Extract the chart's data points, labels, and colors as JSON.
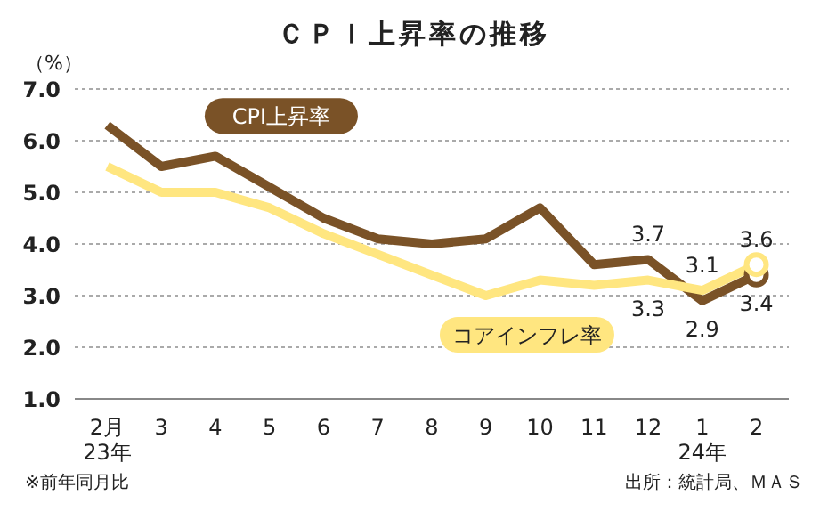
{
  "chart_data": {
    "type": "line",
    "title": "ＣＰＩ上昇率の推移",
    "ylabel": "（%）",
    "categories": [
      "2月\n23年",
      "3",
      "4",
      "5",
      "6",
      "7",
      "8",
      "9",
      "10",
      "11",
      "12",
      "1\n24年",
      "2"
    ],
    "series": [
      {
        "name": "CPI上昇率",
        "color": "#7a5227",
        "values": [
          6.3,
          5.5,
          5.7,
          5.1,
          4.5,
          4.1,
          4.0,
          4.1,
          4.7,
          3.6,
          3.7,
          2.9,
          3.4
        ],
        "value_labels": [
          null,
          null,
          null,
          null,
          null,
          null,
          null,
          null,
          null,
          null,
          "3.7",
          "2.9",
          "3.4"
        ]
      },
      {
        "name": "コアインフレ率",
        "color": "#ffe680",
        "values": [
          5.5,
          5.0,
          5.0,
          4.7,
          4.2,
          3.8,
          3.4,
          3.0,
          3.3,
          3.2,
          3.3,
          3.1,
          3.6
        ],
        "value_labels": [
          null,
          null,
          null,
          null,
          null,
          null,
          null,
          null,
          null,
          null,
          "3.3",
          "3.1",
          "3.6"
        ]
      }
    ],
    "ylim": [
      1,
      7
    ],
    "yticks": [
      {
        "value": 1,
        "label": "1.0"
      },
      {
        "value": 2,
        "label": "2.0"
      },
      {
        "value": 3,
        "label": "3.0"
      },
      {
        "value": 4,
        "label": "4.0"
      },
      {
        "value": 5,
        "label": "5.0"
      },
      {
        "value": 6,
        "label": "6.0"
      },
      {
        "value": 7,
        "label": "7.0"
      }
    ],
    "grid": "y",
    "annotations": [
      "※前年同月比",
      "出所：統計局、ＭＡＳ"
    ]
  }
}
